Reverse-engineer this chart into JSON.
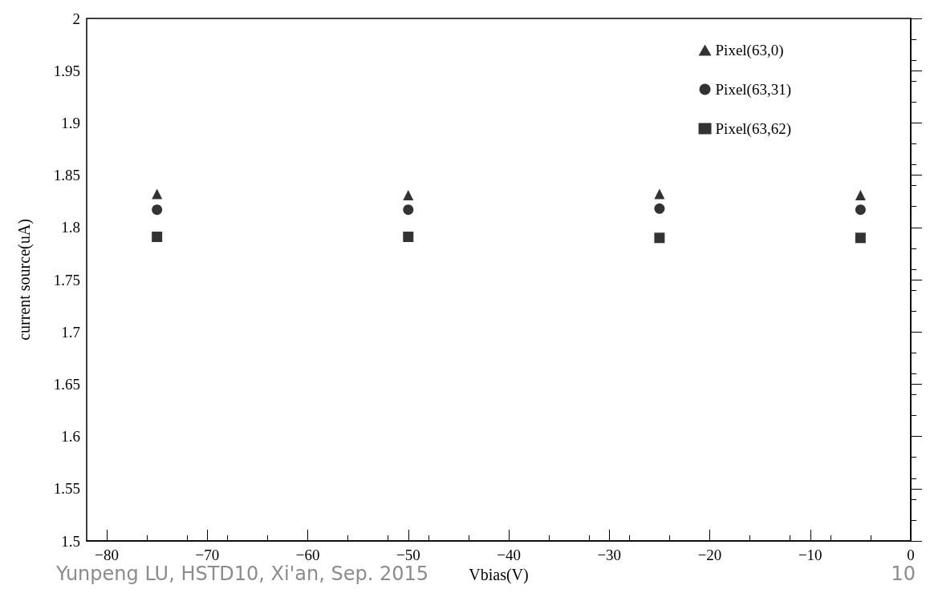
{
  "chart_data": {
    "type": "scatter",
    "xlabel": "Vbias(V)",
    "ylabel": "current source(uA)",
    "xlim": [
      -82,
      0
    ],
    "xticks": [
      -80,
      -70,
      -60,
      -50,
      -40,
      -30,
      -20,
      -10,
      0
    ],
    "ylim": [
      1.5,
      2
    ],
    "yticks": [
      1.5,
      1.55,
      1.6,
      1.65,
      1.7,
      1.75,
      1.8,
      1.85,
      1.9,
      1.95,
      2
    ],
    "grid": false,
    "legend": "top right",
    "series": [
      {
        "name": "Pixel(63,0)",
        "color": "#000000",
        "marker": "triangle",
        "x": [
          -75,
          -50,
          -25,
          -5
        ],
        "values": [
          1.832,
          1.831,
          1.832,
          1.831
        ]
      },
      {
        "name": "Pixel(63,31)",
        "color": "#000000",
        "marker": "circle",
        "x": [
          -75,
          -50,
          -25,
          -5
        ],
        "values": [
          1.817,
          1.817,
          1.818,
          1.817
        ]
      },
      {
        "name": "Pixel(63,62)",
        "color": "#000000",
        "marker": "square",
        "x": [
          -75,
          -50,
          -25,
          -5
        ],
        "values": [
          1.791,
          1.791,
          1.79,
          1.79
        ]
      }
    ],
    "annotations": [
      "Yunpeng LU, HSTD10, Xi'an, Sep. 2015",
      "10"
    ]
  }
}
